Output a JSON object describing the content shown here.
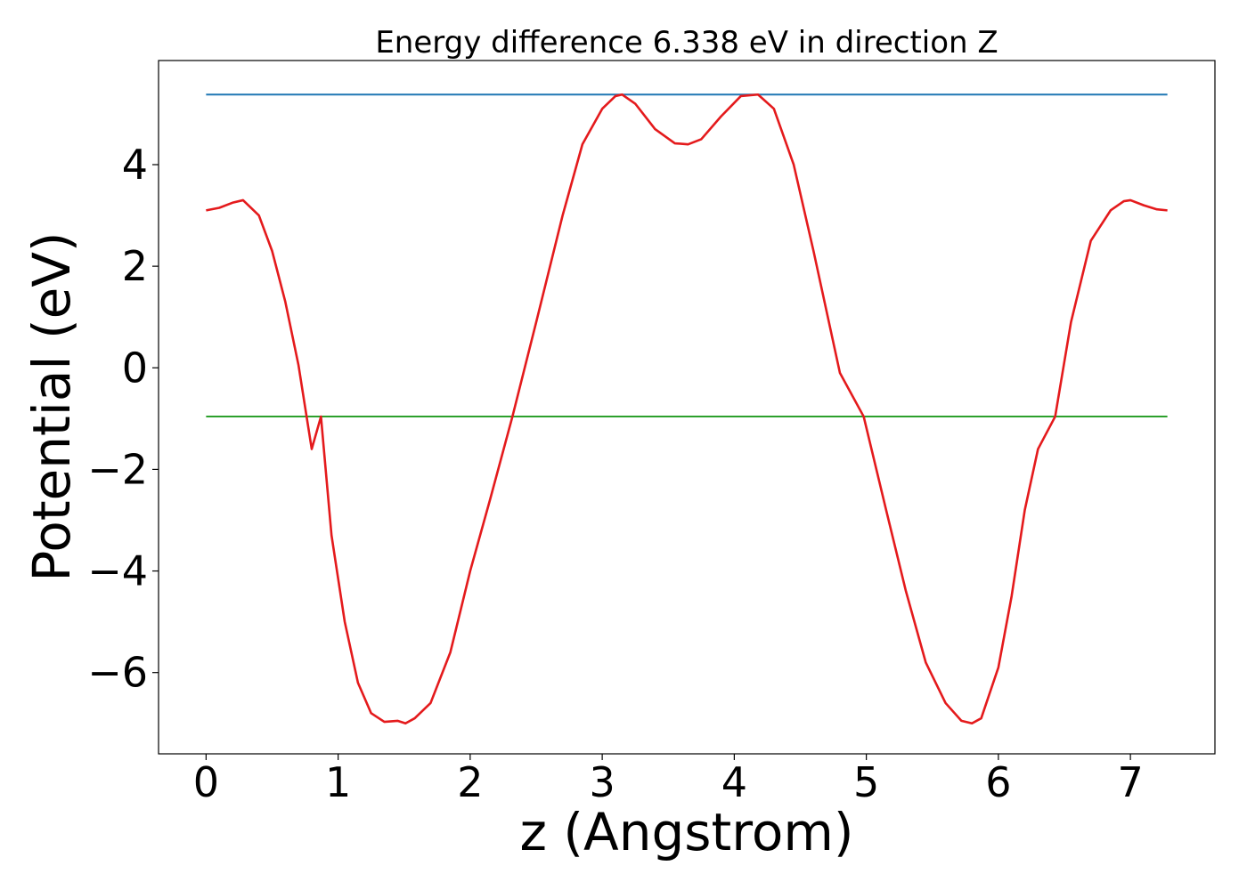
{
  "chart_data": {
    "type": "line",
    "title": "Energy difference 6.338 eV in direction Z",
    "xlabel": "z (Angstrom)",
    "ylabel": "Potential (eV)",
    "xlim": [
      -0.36,
      7.64
    ],
    "ylim": [
      -7.6,
      6.05
    ],
    "xticks": [
      0,
      1,
      2,
      3,
      4,
      5,
      6,
      7
    ],
    "xtick_labels": [
      "0",
      "1",
      "2",
      "3",
      "4",
      "5",
      "6",
      "7"
    ],
    "yticks": [
      4,
      2,
      0,
      -2,
      -4,
      -6
    ],
    "ytick_labels": [
      "4",
      "2",
      "0",
      "−2",
      "−4",
      "−6"
    ],
    "grid": false,
    "legend": false,
    "series": [
      {
        "color": "#1f77b4",
        "x": [
          0,
          7.28
        ],
        "y": [
          5.38,
          5.38
        ]
      },
      {
        "color": "#2ca02c",
        "x": [
          0,
          7.28
        ],
        "y": [
          -0.96,
          -0.96
        ]
      },
      {
        "color": "#e41a1c",
        "x": [
          0.0,
          0.1,
          0.2,
          0.28,
          0.4,
          0.5,
          0.6,
          0.7,
          0.8,
          0.87,
          0.95,
          1.05,
          1.15,
          1.25,
          1.35,
          1.45,
          1.51,
          1.58,
          1.7,
          1.85,
          2.0,
          2.15,
          2.32,
          2.5,
          2.7,
          2.85,
          3.0,
          3.1,
          3.15,
          3.25,
          3.4,
          3.55,
          3.65,
          3.75,
          3.9,
          4.05,
          4.18,
          4.3,
          4.45,
          4.6,
          4.8,
          4.98,
          5.15,
          5.3,
          5.45,
          5.6,
          5.72,
          5.8,
          5.87,
          6.0,
          6.1,
          6.2,
          6.3,
          6.43,
          6.55,
          6.7,
          6.85,
          6.95,
          7.0,
          7.1,
          7.2,
          7.28
        ],
        "y": [
          3.1,
          3.15,
          3.25,
          3.3,
          3.0,
          2.3,
          1.3,
          0.05,
          -1.6,
          -0.96,
          -3.3,
          -5.0,
          -6.2,
          -6.8,
          -6.97,
          -6.95,
          -7.0,
          -6.9,
          -6.6,
          -5.6,
          -4.0,
          -2.6,
          -0.96,
          0.9,
          3.0,
          4.4,
          5.1,
          5.35,
          5.38,
          5.2,
          4.7,
          4.42,
          4.4,
          4.5,
          4.95,
          5.35,
          5.38,
          5.1,
          4.0,
          2.3,
          -0.1,
          -0.96,
          -2.8,
          -4.4,
          -5.8,
          -6.6,
          -6.95,
          -7.0,
          -6.9,
          -5.9,
          -4.5,
          -2.8,
          -1.6,
          -0.96,
          0.9,
          2.5,
          3.1,
          3.28,
          3.3,
          3.2,
          3.12,
          3.1
        ]
      }
    ]
  }
}
